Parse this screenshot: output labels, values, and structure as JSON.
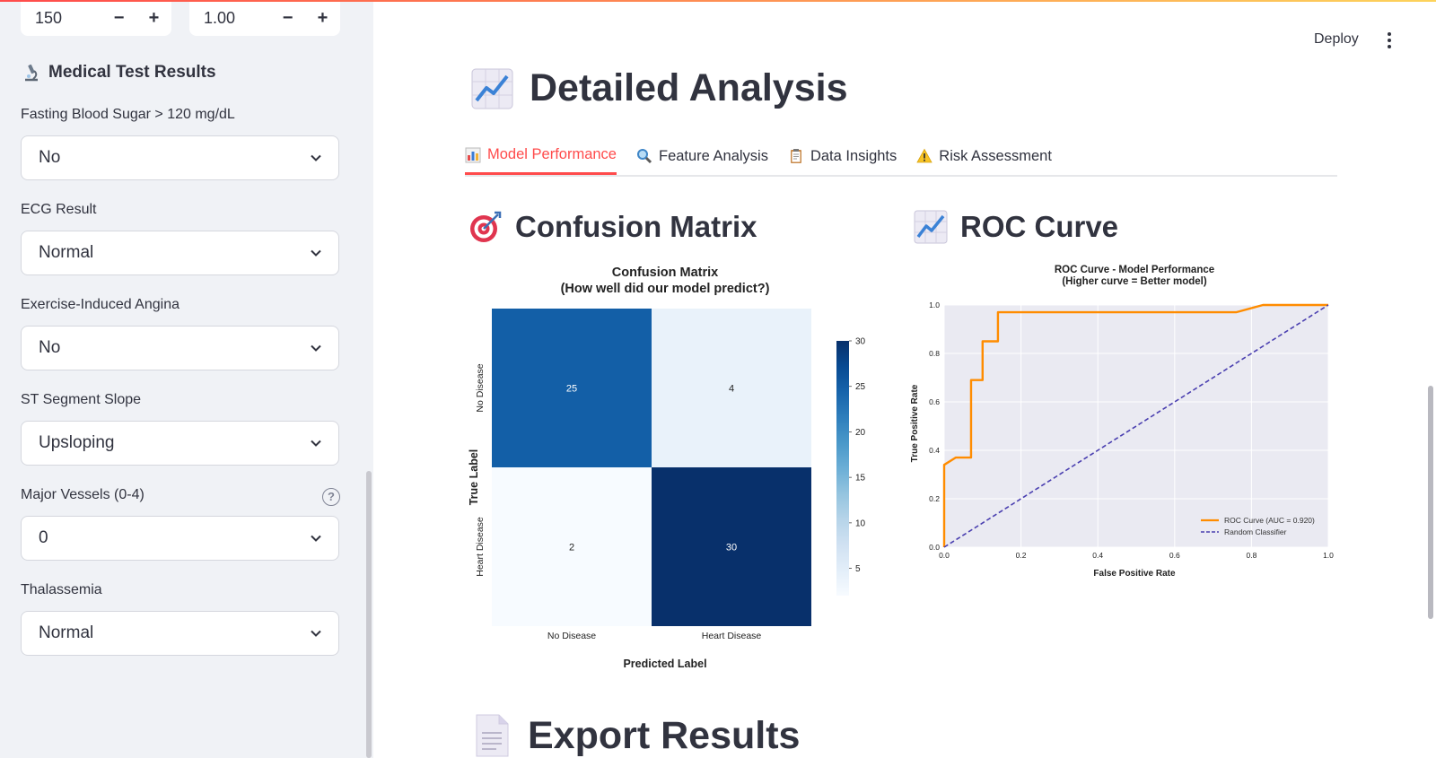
{
  "sidebar": {
    "stepper_left": {
      "value": "150",
      "minus": "−",
      "plus": "+"
    },
    "stepper_right": {
      "value": "1.00",
      "minus": "−",
      "plus": "+"
    },
    "section_title": "Medical Test Results",
    "section_icon": "microscope-icon",
    "fields": [
      {
        "label": "Fasting Blood Sugar > 120 mg/dL",
        "value": "No"
      },
      {
        "label": "ECG Result",
        "value": "Normal"
      },
      {
        "label": "Exercise-Induced Angina",
        "value": "No"
      },
      {
        "label": "ST Segment Slope",
        "value": "Upsloping"
      },
      {
        "label": "Major Vessels (0-4)",
        "value": "0",
        "help": "?"
      },
      {
        "label": "Thalassemia",
        "value": "Normal"
      }
    ]
  },
  "header": {
    "deploy_label": "Deploy"
  },
  "main": {
    "title": "Detailed Analysis",
    "tabs": [
      {
        "label": "Model Performance",
        "icon": "bar-chart-icon",
        "active": true
      },
      {
        "label": "Feature Analysis",
        "icon": "magnifier-icon",
        "active": false
      },
      {
        "label": "Data Insights",
        "icon": "clipboard-icon",
        "active": false
      },
      {
        "label": "Risk Assessment",
        "icon": "warning-icon",
        "active": false
      }
    ],
    "cm_heading": "Confusion Matrix",
    "roc_heading": "ROC Curve",
    "export_heading": "Export Results"
  },
  "chart_data": [
    {
      "type": "heatmap",
      "title": "Confusion Matrix",
      "subtitle": "(How well did our model predict?)",
      "xlabel": "Predicted Label",
      "ylabel": "True Label",
      "x_categories": [
        "No Disease",
        "Heart Disease"
      ],
      "y_categories": [
        "No Disease",
        "Heart Disease"
      ],
      "values": [
        [
          25,
          4
        ],
        [
          2,
          30
        ]
      ],
      "colorbar": {
        "min": 2,
        "max": 30,
        "ticks": [
          5,
          10,
          15,
          20,
          25,
          30
        ],
        "colormap": "Blues"
      }
    },
    {
      "type": "line",
      "title": "ROC Curve - Model Performance",
      "subtitle": "(Higher curve = Better model)",
      "xlabel": "False Positive Rate",
      "ylabel": "True Positive Rate",
      "xlim": [
        0,
        1
      ],
      "ylim": [
        0,
        1
      ],
      "xticks": [
        "0.0",
        "0.2",
        "0.4",
        "0.6",
        "0.8",
        "1.0"
      ],
      "yticks": [
        "0.0",
        "0.2",
        "0.4",
        "0.6",
        "0.8",
        "1.0"
      ],
      "grid": true,
      "legend_position": "bottom-right",
      "series": [
        {
          "name": "ROC Curve (AUC = 0.920)",
          "color": "#ff8c00",
          "style": "solid",
          "x": [
            0.0,
            0.0,
            0.03,
            0.07,
            0.07,
            0.1,
            0.1,
            0.14,
            0.14,
            0.76,
            0.83,
            1.0
          ],
          "y": [
            0.0,
            0.34,
            0.37,
            0.37,
            0.69,
            0.69,
            0.85,
            0.85,
            0.97,
            0.97,
            1.0,
            1.0
          ]
        },
        {
          "name": "Random Classifier",
          "color": "#4a3fb0",
          "style": "dashed",
          "x": [
            0,
            1
          ],
          "y": [
            0,
            1
          ]
        }
      ]
    }
  ]
}
